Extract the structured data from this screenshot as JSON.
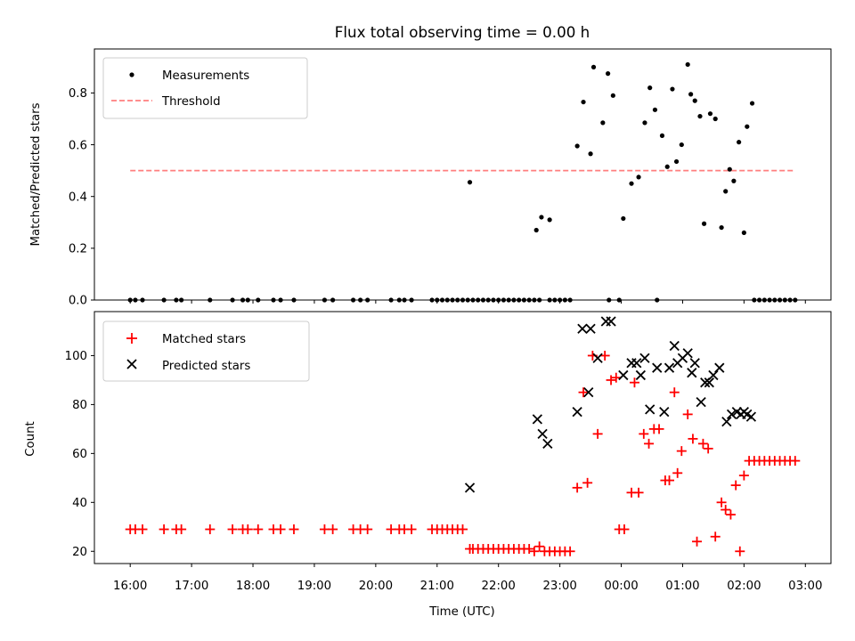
{
  "title": "Flux total observing time = 0.00 h",
  "chart_data": [
    {
      "type": "scatter",
      "xlabel": "",
      "ylabel": "Matched/Predicted stars",
      "xlim": [
        "15:25",
        "03:25"
      ],
      "ylim": [
        0,
        0.97
      ],
      "yticks": [
        0.0,
        0.2,
        0.4,
        0.6,
        0.8
      ],
      "ytick_labels": [
        "0.0",
        "0.2",
        "0.4",
        "0.6",
        "0.8"
      ],
      "xticks": [
        "16:00",
        "17:00",
        "18:00",
        "19:00",
        "20:00",
        "21:00",
        "22:00",
        "23:00",
        "00:00",
        "01:00",
        "02:00",
        "03:00"
      ],
      "grid": false,
      "legend_position": "top-left",
      "legend": [
        {
          "label": "Measurements",
          "marker": "dot",
          "color": "#000000"
        },
        {
          "label": "Threshold",
          "marker": "dashed-line",
          "color": "#ff7f7f"
        }
      ],
      "threshold": {
        "y": 0.5,
        "x_start": "16:00",
        "x_end": "02:50",
        "color": "#ff7f7f"
      },
      "series": [
        {
          "name": "Measurements",
          "color": "#000000",
          "points": [
            [
              "16:00",
              0
            ],
            [
              "16:05",
              0
            ],
            [
              "16:12",
              0
            ],
            [
              "16:33",
              0
            ],
            [
              "16:45",
              0
            ],
            [
              "16:50",
              0
            ],
            [
              "17:18",
              0
            ],
            [
              "17:40",
              0
            ],
            [
              "17:50",
              0
            ],
            [
              "17:55",
              0
            ],
            [
              "18:05",
              0
            ],
            [
              "18:20",
              0
            ],
            [
              "18:27",
              0
            ],
            [
              "18:40",
              0
            ],
            [
              "19:10",
              0
            ],
            [
              "19:18",
              0
            ],
            [
              "19:38",
              0
            ],
            [
              "19:45",
              0
            ],
            [
              "19:52",
              0
            ],
            [
              "20:15",
              0
            ],
            [
              "20:23",
              0
            ],
            [
              "20:28",
              0
            ],
            [
              "20:35",
              0
            ],
            [
              "20:55",
              0
            ],
            [
              "21:00",
              0
            ],
            [
              "21:05",
              0
            ],
            [
              "21:10",
              0
            ],
            [
              "21:15",
              0
            ],
            [
              "21:20",
              0
            ],
            [
              "21:25",
              0
            ],
            [
              "21:30",
              0
            ],
            [
              "21:35",
              0
            ],
            [
              "21:40",
              0
            ],
            [
              "21:45",
              0
            ],
            [
              "21:50",
              0
            ],
            [
              "21:55",
              0
            ],
            [
              "22:00",
              0
            ],
            [
              "22:05",
              0
            ],
            [
              "22:10",
              0
            ],
            [
              "22:15",
              0
            ],
            [
              "22:20",
              0
            ],
            [
              "22:25",
              0
            ],
            [
              "22:30",
              0
            ],
            [
              "22:35",
              0
            ],
            [
              "22:40",
              0
            ],
            [
              "22:50",
              0
            ],
            [
              "22:55",
              0
            ],
            [
              "23:00",
              0
            ],
            [
              "23:05",
              0
            ],
            [
              "23:10",
              0
            ],
            [
              "23:48",
              0
            ],
            [
              "23:58",
              0
            ],
            [
              "00:35",
              0
            ],
            [
              "02:10",
              0
            ],
            [
              "02:15",
              0
            ],
            [
              "02:20",
              0
            ],
            [
              "02:25",
              0
            ],
            [
              "02:30",
              0
            ],
            [
              "02:35",
              0
            ],
            [
              "02:40",
              0
            ],
            [
              "02:45",
              0
            ],
            [
              "02:50",
              0
            ],
            [
              "21:32",
              0.455
            ],
            [
              "22:37",
              0.27
            ],
            [
              "22:42",
              0.32
            ],
            [
              "22:50",
              0.31
            ],
            [
              "23:17",
              0.595
            ],
            [
              "23:23",
              0.765
            ],
            [
              "23:30",
              0.565
            ],
            [
              "23:33",
              0.9
            ],
            [
              "23:42",
              0.685
            ],
            [
              "23:47",
              0.875
            ],
            [
              "23:52",
              0.79
            ],
            [
              "00:02",
              0.315
            ],
            [
              "00:10",
              0.45
            ],
            [
              "00:17",
              0.475
            ],
            [
              "00:23",
              0.685
            ],
            [
              "00:28",
              0.82
            ],
            [
              "00:33",
              0.735
            ],
            [
              "00:40",
              0.635
            ],
            [
              "00:45",
              0.515
            ],
            [
              "00:50",
              0.815
            ],
            [
              "00:54",
              0.535
            ],
            [
              "00:59",
              0.6
            ],
            [
              "01:05",
              0.91
            ],
            [
              "01:08",
              0.795
            ],
            [
              "01:12",
              0.77
            ],
            [
              "01:17",
              0.71
            ],
            [
              "01:21",
              0.295
            ],
            [
              "01:27",
              0.72
            ],
            [
              "01:32",
              0.7
            ],
            [
              "01:38",
              0.28
            ],
            [
              "01:42",
              0.42
            ],
            [
              "01:46",
              0.505
            ],
            [
              "01:50",
              0.46
            ],
            [
              "01:55",
              0.61
            ],
            [
              "02:00",
              0.26
            ],
            [
              "02:03",
              0.67
            ],
            [
              "02:08",
              0.76
            ]
          ]
        }
      ]
    },
    {
      "type": "scatter",
      "xlabel": "Time (UTC)",
      "ylabel": "Count",
      "xlim": [
        "15:25",
        "03:25"
      ],
      "ylim": [
        15,
        118
      ],
      "yticks": [
        20,
        40,
        60,
        80,
        100
      ],
      "ytick_labels": [
        "20",
        "40",
        "60",
        "80",
        "100"
      ],
      "xticks": [
        "16:00",
        "17:00",
        "18:00",
        "19:00",
        "20:00",
        "21:00",
        "22:00",
        "23:00",
        "00:00",
        "01:00",
        "02:00",
        "03:00"
      ],
      "xtick_labels": [
        "16:00",
        "17:00",
        "18:00",
        "19:00",
        "20:00",
        "21:00",
        "22:00",
        "23:00",
        "00:00",
        "01:00",
        "02:00",
        "03:00"
      ],
      "grid": false,
      "legend_position": "top-left",
      "legend": [
        {
          "label": "Matched stars",
          "marker": "plus",
          "color": "#ff0000"
        },
        {
          "label": "Predicted stars",
          "marker": "x",
          "color": "#000000"
        }
      ],
      "series": [
        {
          "name": "Matched stars",
          "color": "#ff0000",
          "points": [
            [
              "16:00",
              29
            ],
            [
              "16:05",
              29
            ],
            [
              "16:12",
              29
            ],
            [
              "16:33",
              29
            ],
            [
              "16:45",
              29
            ],
            [
              "16:50",
              29
            ],
            [
              "17:18",
              29
            ],
            [
              "17:40",
              29
            ],
            [
              "17:50",
              29
            ],
            [
              "17:55",
              29
            ],
            [
              "18:05",
              29
            ],
            [
              "18:20",
              29
            ],
            [
              "18:27",
              29
            ],
            [
              "18:40",
              29
            ],
            [
              "19:10",
              29
            ],
            [
              "19:18",
              29
            ],
            [
              "19:38",
              29
            ],
            [
              "19:45",
              29
            ],
            [
              "19:52",
              29
            ],
            [
              "20:15",
              29
            ],
            [
              "20:23",
              29
            ],
            [
              "20:28",
              29
            ],
            [
              "20:35",
              29
            ],
            [
              "20:55",
              29
            ],
            [
              "21:00",
              29
            ],
            [
              "21:05",
              29
            ],
            [
              "21:10",
              29
            ],
            [
              "21:15",
              29
            ],
            [
              "21:20",
              29
            ],
            [
              "21:25",
              29
            ],
            [
              "21:32",
              21
            ],
            [
              "21:35",
              21
            ],
            [
              "21:40",
              21
            ],
            [
              "21:45",
              21
            ],
            [
              "21:50",
              21
            ],
            [
              "21:55",
              21
            ],
            [
              "22:00",
              21
            ],
            [
              "22:05",
              21
            ],
            [
              "22:10",
              21
            ],
            [
              "22:15",
              21
            ],
            [
              "22:20",
              21
            ],
            [
              "22:25",
              21
            ],
            [
              "22:30",
              21
            ],
            [
              "22:35",
              20
            ],
            [
              "22:40",
              22
            ],
            [
              "22:45",
              20
            ],
            [
              "22:50",
              20
            ],
            [
              "22:55",
              20
            ],
            [
              "23:00",
              20
            ],
            [
              "23:05",
              20
            ],
            [
              "23:10",
              20
            ],
            [
              "23:17",
              46
            ],
            [
              "23:23",
              85
            ],
            [
              "23:27",
              48
            ],
            [
              "23:32",
              100
            ],
            [
              "23:37",
              68
            ],
            [
              "23:44",
              100
            ],
            [
              "23:50",
              90
            ],
            [
              "23:55",
              91
            ],
            [
              "23:58",
              29
            ],
            [
              "00:03",
              29
            ],
            [
              "00:10",
              44
            ],
            [
              "00:13",
              89
            ],
            [
              "00:17",
              44
            ],
            [
              "00:22",
              68
            ],
            [
              "00:27",
              64
            ],
            [
              "00:32",
              70
            ],
            [
              "00:37",
              70
            ],
            [
              "00:43",
              49
            ],
            [
              "00:47",
              49
            ],
            [
              "00:52",
              85
            ],
            [
              "00:55",
              52
            ],
            [
              "00:59",
              61
            ],
            [
              "01:05",
              76
            ],
            [
              "01:10",
              66
            ],
            [
              "01:14",
              24
            ],
            [
              "01:20",
              64
            ],
            [
              "01:25",
              62
            ],
            [
              "01:32",
              26
            ],
            [
              "01:38",
              40
            ],
            [
              "01:42",
              37
            ],
            [
              "01:47",
              35
            ],
            [
              "01:52",
              47
            ],
            [
              "01:56",
              20
            ],
            [
              "02:00",
              51
            ],
            [
              "02:05",
              57
            ],
            [
              "02:10",
              57
            ],
            [
              "02:15",
              57
            ],
            [
              "02:20",
              57
            ],
            [
              "02:25",
              57
            ],
            [
              "02:30",
              57
            ],
            [
              "02:35",
              57
            ],
            [
              "02:40",
              57
            ],
            [
              "02:45",
              57
            ],
            [
              "02:50",
              57
            ]
          ]
        },
        {
          "name": "Predicted stars",
          "color": "#000000",
          "points": [
            [
              "21:32",
              46
            ],
            [
              "22:38",
              74
            ],
            [
              "22:43",
              68
            ],
            [
              "22:48",
              64
            ],
            [
              "23:17",
              77
            ],
            [
              "23:22",
              111
            ],
            [
              "23:28",
              85
            ],
            [
              "23:30",
              111
            ],
            [
              "23:37",
              99
            ],
            [
              "23:45",
              114
            ],
            [
              "23:50",
              114
            ],
            [
              "00:02",
              92
            ],
            [
              "00:10",
              97
            ],
            [
              "00:15",
              97
            ],
            [
              "00:19",
              92
            ],
            [
              "00:23",
              99
            ],
            [
              "00:28",
              78
            ],
            [
              "00:35",
              95
            ],
            [
              "00:42",
              77
            ],
            [
              "00:47",
              95
            ],
            [
              "00:52",
              104
            ],
            [
              "00:55",
              97
            ],
            [
              "01:00",
              99
            ],
            [
              "01:05",
              101
            ],
            [
              "01:09",
              93
            ],
            [
              "01:12",
              97
            ],
            [
              "01:18",
              81
            ],
            [
              "01:22",
              89
            ],
            [
              "01:26",
              89
            ],
            [
              "01:30",
              92
            ],
            [
              "01:36",
              95
            ],
            [
              "01:43",
              73
            ],
            [
              "01:48",
              76
            ],
            [
              "01:53",
              77
            ],
            [
              "01:57",
              76
            ],
            [
              "02:00",
              77
            ],
            [
              "02:03",
              76
            ],
            [
              "02:07",
              75
            ]
          ]
        }
      ]
    }
  ]
}
